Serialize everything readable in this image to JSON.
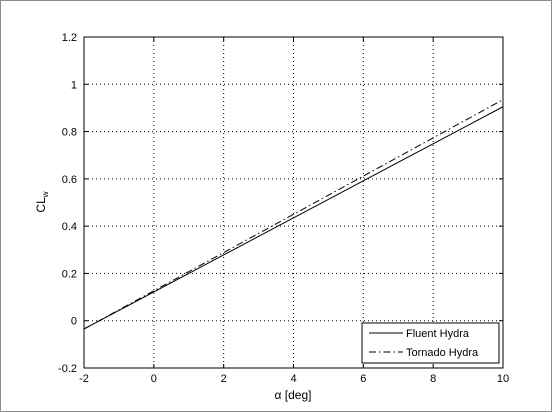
{
  "chart_data": {
    "type": "line",
    "title": "",
    "xlabel": "α [deg]",
    "ylabel": "CL",
    "ylabel_subscript": "w",
    "xlim": [
      -2,
      10
    ],
    "ylim": [
      -0.2,
      1.2
    ],
    "xticks": [
      -2,
      0,
      2,
      4,
      6,
      8,
      10
    ],
    "yticks": [
      -0.2,
      0,
      0.2,
      0.4,
      0.6,
      0.8,
      1,
      1.2
    ],
    "xtick_labels": [
      "-2",
      "0",
      "2",
      "4",
      "6",
      "8",
      "10"
    ],
    "ytick_labels": [
      "-0.2",
      "0",
      "0.2",
      "0.4",
      "0.6",
      "0.8",
      "1",
      "1.2"
    ],
    "grid": true,
    "legend_position": "bottom-right",
    "series": [
      {
        "name": "Fluent Hydra",
        "line_style": "solid",
        "color": "#000000",
        "x": [
          -2,
          10
        ],
        "y": [
          -0.035,
          0.905
        ]
      },
      {
        "name": "Tornado Hydra",
        "line_style": "dash-dot",
        "color": "#000000",
        "x": [
          -2,
          10
        ],
        "y": [
          -0.035,
          0.935
        ]
      }
    ]
  }
}
